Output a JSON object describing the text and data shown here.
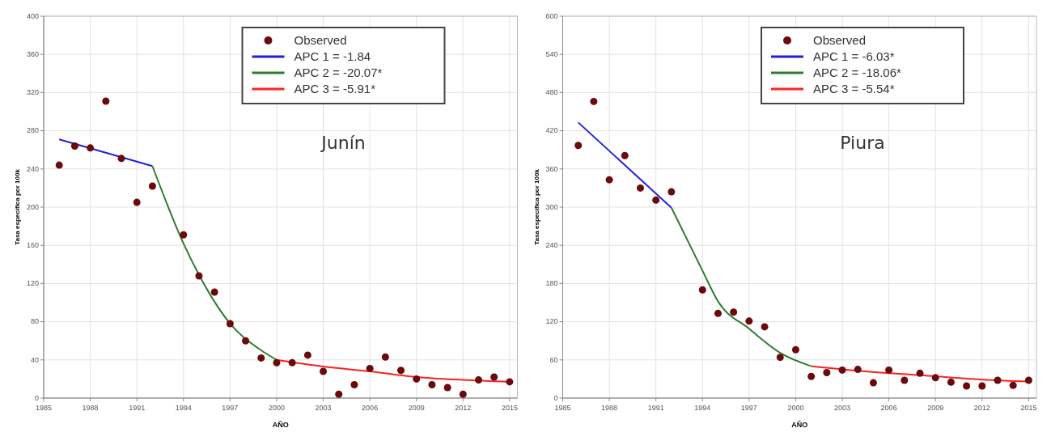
{
  "chart_data": [
    {
      "type": "scatter",
      "xlabel": "AÑO",
      "ylabel": "Tasa específica por 100k",
      "xlim": [
        1985,
        2015.5
      ],
      "xticks": [
        1985,
        1988,
        1991,
        1994,
        1997,
        2000,
        2003,
        2006,
        2009,
        2012,
        2015
      ],
      "ylim": [
        0,
        400
      ],
      "yticks": [
        0,
        40,
        80,
        120,
        160,
        200,
        240,
        280,
        320,
        360,
        400
      ],
      "grid": true,
      "legend": "top right",
      "annotations": [
        "Junín"
      ],
      "series": [
        {
          "name": "Observed",
          "marker": "circle",
          "color": "#6b0a0a",
          "x": [
            1986,
            1987,
            1988,
            1989,
            1990,
            1991,
            1992,
            1994,
            1995,
            1996,
            1997,
            1998,
            1999,
            2000,
            2001,
            2002,
            2003,
            2004,
            2005,
            2006,
            2007,
            2008,
            2009,
            2010,
            2011,
            2012,
            2013,
            2014,
            2015
          ],
          "values": [
            244,
            264,
            262,
            311,
            251,
            205,
            222,
            171,
            128,
            111,
            78,
            60,
            42,
            37,
            37,
            45,
            28,
            4,
            14,
            31,
            43,
            29,
            20,
            14,
            11,
            4,
            19,
            22,
            17
          ]
        },
        {
          "name": "APC 1 = -1.84",
          "type": "line",
          "marker": "none",
          "color": "#2020e0",
          "x": [
            1986,
            1992
          ],
          "values": [
            271,
            243
          ]
        },
        {
          "name": "APC 2 = -20.07*",
          "type": "line",
          "marker": "none",
          "color": "#2e7d32",
          "x": [
            1992,
            1994,
            1995,
            1997,
            1999,
            2000
          ],
          "values": [
            243,
            162,
            129,
            78,
            50,
            40
          ]
        },
        {
          "name": "APC 3 = -5.91*",
          "type": "line",
          "marker": "none",
          "color": "#ff2020",
          "x": [
            2000,
            2003,
            2006,
            2009,
            2012,
            2015
          ],
          "values": [
            40,
            33,
            28,
            22,
            19,
            17
          ]
        }
      ]
    },
    {
      "type": "scatter",
      "xlabel": "AÑO",
      "ylabel": "Tasa específica por 100k",
      "xlim": [
        1985,
        2015.5
      ],
      "xticks": [
        1985,
        1988,
        1991,
        1994,
        1997,
        2000,
        2003,
        2006,
        2009,
        2012,
        2015
      ],
      "ylim": [
        0,
        600
      ],
      "yticks": [
        0,
        60,
        120,
        180,
        240,
        300,
        360,
        420,
        480,
        540,
        600
      ],
      "grid": true,
      "legend": "top right",
      "annotations": [
        "Piura"
      ],
      "series": [
        {
          "name": "Observed",
          "marker": "circle",
          "color": "#6b0a0a",
          "x": [
            1986,
            1987,
            1988,
            1989,
            1990,
            1991,
            1992,
            1994,
            1995,
            1996,
            1997,
            1998,
            1999,
            2000,
            2001,
            2002,
            2003,
            2004,
            2005,
            2006,
            2007,
            2008,
            2009,
            2010,
            2011,
            2012,
            2013,
            2014,
            2015
          ],
          "values": [
            397,
            466,
            343,
            381,
            330,
            311,
            324,
            170,
            133,
            135,
            121,
            112,
            64,
            76,
            34,
            40,
            44,
            45,
            24,
            44,
            28,
            39,
            32,
            25,
            19,
            19,
            28,
            20,
            28
          ]
        },
        {
          "name": "APC 1 = -6.03*",
          "type": "line",
          "marker": "none",
          "color": "#2020e0",
          "x": [
            1986,
            1992
          ],
          "values": [
            433,
            299
          ]
        },
        {
          "name": "APC 2 = -18.06*",
          "type": "line",
          "marker": "none",
          "color": "#2e7d32",
          "x": [
            1992,
            1994,
            1995,
            1997,
            1999,
            2001
          ],
          "values": [
            299,
            200,
            152,
            109,
            71,
            50
          ]
        },
        {
          "name": "APC 3 = -5.54*",
          "type": "line",
          "marker": "none",
          "color": "#ff2020",
          "x": [
            2001,
            2004,
            2008,
            2012,
            2015
          ],
          "values": [
            50,
            43,
            36,
            29,
            26
          ]
        }
      ]
    }
  ]
}
